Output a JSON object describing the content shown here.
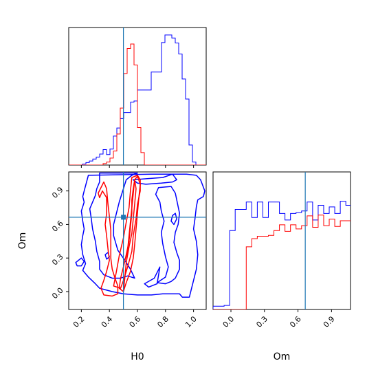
{
  "chart_data": {
    "type": "corner",
    "parameters": [
      "H0",
      "Om"
    ],
    "truths": {
      "H0": 0.5,
      "Om": 0.665
    },
    "colors": {
      "blue": "#0000ff",
      "red": "#ff0000",
      "truth": "#1f77b4"
    },
    "axes": {
      "H0": {
        "range": [
          0.11,
          1.09
        ],
        "ticks": [
          "0.2",
          "0.4",
          "0.6",
          "0.8",
          "1.0"
        ],
        "tick_values": [
          0.2,
          0.4,
          0.6,
          0.8,
          1.0
        ]
      },
      "Om": {
        "range": [
          -0.16,
          1.07
        ],
        "ticks": [
          "0.0",
          "0.3",
          "0.6",
          "0.9"
        ],
        "tick_values": [
          0.0,
          0.3,
          0.6,
          0.9
        ]
      }
    },
    "hist_H0": {
      "x_start": 0.11,
      "bin_width": 0.0245,
      "blue": [
        0,
        0,
        0,
        0,
        0.2,
        0.5,
        0.8,
        1.2,
        1.6,
        2.2,
        3.1,
        2.1,
        3.2,
        5.8,
        7.4,
        9.3,
        10.5,
        10.5,
        12.6,
        12.8,
        15.0,
        15.0,
        15.0,
        15.0,
        18.6,
        18.6,
        18.6,
        24.5,
        26.0,
        26.0,
        25.4,
        24.4,
        22.2,
        17.2,
        13.2,
        4.0,
        0.6,
        0,
        0,
        0
      ],
      "red": [
        0,
        0,
        0,
        0,
        0,
        0,
        0,
        0,
        0,
        0,
        0.3,
        0.6,
        1.4,
        2.8,
        6.2,
        11.4,
        18.3,
        23.3,
        24.2,
        20.0,
        7.5,
        2.5,
        0,
        0,
        0,
        0,
        0,
        0,
        0,
        0,
        0,
        0,
        0,
        0,
        0,
        0,
        0,
        0,
        0,
        0
      ]
    },
    "hist_Om": {
      "x_start": -0.16,
      "bin_width": 0.0495,
      "blue": [
        0.4,
        0.4,
        0.5,
        9.7,
        12.3,
        12.3,
        13.2,
        11.3,
        13.2,
        11.3,
        13.2,
        13.2,
        11.8,
        11.0,
        11.8,
        11.9,
        12.1,
        13.2,
        11.0,
        12.8,
        11.8,
        12.6,
        11.8,
        13.3,
        12.8,
        7.0,
        5.7,
        0.8,
        0.3
      ],
      "red": [
        0,
        0,
        0,
        0,
        0,
        0,
        7.7,
        8.7,
        9.0,
        9.0,
        9.1,
        9.7,
        10.4,
        9.6,
        10.4,
        9.9,
        10.3,
        11.5,
        10.1,
        11.6,
        10.3,
        11.1,
        10.2,
        10.9,
        10.9,
        9.9,
        10.2,
        0.1,
        0
      ]
    },
    "contours_blue": [
      [
        [
          0.25,
          1.04
        ],
        [
          0.235,
          0.97
        ],
        [
          0.22,
          0.9
        ],
        [
          0.21,
          0.85
        ],
        [
          0.22,
          0.8
        ],
        [
          0.2,
          0.72
        ],
        [
          0.21,
          0.63
        ],
        [
          0.22,
          0.56
        ],
        [
          0.21,
          0.5
        ],
        [
          0.2,
          0.42
        ],
        [
          0.21,
          0.33
        ],
        [
          0.23,
          0.25
        ],
        [
          0.21,
          0.19
        ],
        [
          0.25,
          0.13
        ],
        [
          0.3,
          0.07
        ],
        [
          0.33,
          0.03
        ],
        [
          0.42,
          0.0
        ],
        [
          0.5,
          -0.02
        ],
        [
          0.6,
          -0.03
        ],
        [
          0.7,
          -0.03
        ],
        [
          0.78,
          -0.02
        ],
        [
          0.83,
          -0.02
        ],
        [
          0.9,
          -0.02
        ],
        [
          0.92,
          -0.05
        ],
        [
          0.97,
          -0.05
        ],
        [
          0.98,
          0.0
        ],
        [
          1.0,
          0.1
        ],
        [
          1.02,
          0.2
        ],
        [
          1.03,
          0.33
        ],
        [
          1.02,
          0.45
        ],
        [
          1.0,
          0.56
        ],
        [
          1.01,
          0.65
        ],
        [
          1.02,
          0.76
        ],
        [
          1.03,
          0.82
        ],
        [
          1.07,
          0.85
        ],
        [
          1.08,
          0.9
        ],
        [
          1.05,
          1.0
        ],
        [
          1.02,
          1.04
        ],
        [
          0.95,
          1.05
        ],
        [
          0.7,
          1.05
        ]
      ],
      [
        [
          0.33,
          1.06
        ],
        [
          0.33,
          0.98
        ],
        [
          0.31,
          0.92
        ],
        [
          0.3,
          0.86
        ],
        [
          0.28,
          0.8
        ],
        [
          0.26,
          0.74
        ],
        [
          0.27,
          0.66
        ],
        [
          0.28,
          0.56
        ],
        [
          0.3,
          0.45
        ],
        [
          0.31,
          0.36
        ],
        [
          0.33,
          0.27
        ],
        [
          0.33,
          0.2
        ],
        [
          0.36,
          0.15
        ],
        [
          0.42,
          0.12
        ],
        [
          0.48,
          0.12
        ],
        [
          0.53,
          0.14
        ],
        [
          0.58,
          0.12
        ],
        [
          0.55,
          0.2
        ],
        [
          0.51,
          0.28
        ],
        [
          0.46,
          0.37
        ],
        [
          0.43,
          0.5
        ],
        [
          0.43,
          0.6
        ],
        [
          0.45,
          0.7
        ],
        [
          0.47,
          0.8
        ],
        [
          0.5,
          0.92
        ],
        [
          0.52,
          1.0
        ],
        [
          0.56,
          1.04
        ],
        [
          0.6,
          1.06
        ]
      ],
      [
        [
          0.16,
          0.26
        ],
        [
          0.2,
          0.3
        ],
        [
          0.22,
          0.27
        ],
        [
          0.2,
          0.23
        ],
        [
          0.17,
          0.23
        ]
      ],
      [
        [
          0.57,
          1.0
        ],
        [
          0.67,
          1.01
        ],
        [
          0.78,
          1.02
        ],
        [
          0.85,
          1.05
        ],
        [
          0.88,
          1.0
        ],
        [
          0.85,
          0.98
        ],
        [
          0.77,
          0.97
        ],
        [
          0.66,
          0.96
        ],
        [
          0.6,
          0.97
        ]
      ],
      [
        [
          0.74,
          0.08
        ],
        [
          0.8,
          0.13
        ],
        [
          0.82,
          0.22
        ],
        [
          0.8,
          0.31
        ],
        [
          0.78,
          0.43
        ],
        [
          0.77,
          0.53
        ],
        [
          0.79,
          0.63
        ],
        [
          0.77,
          0.72
        ],
        [
          0.76,
          0.8
        ],
        [
          0.73,
          0.87
        ],
        [
          0.75,
          0.93
        ],
        [
          0.84,
          0.94
        ],
        [
          0.87,
          0.88
        ],
        [
          0.88,
          0.82
        ],
        [
          0.9,
          0.7
        ],
        [
          0.89,
          0.6
        ],
        [
          0.87,
          0.53
        ],
        [
          0.86,
          0.44
        ],
        [
          0.88,
          0.35
        ],
        [
          0.9,
          0.28
        ],
        [
          0.9,
          0.2
        ],
        [
          0.87,
          0.12
        ],
        [
          0.84,
          0.09
        ],
        [
          0.8,
          0.07
        ]
      ],
      [
        [
          0.76,
          0.22
        ],
        [
          0.72,
          0.12
        ],
        [
          0.65,
          0.07
        ],
        [
          0.68,
          0.04
        ],
        [
          0.74,
          0.07
        ]
      ],
      [
        [
          0.86,
          0.6
        ],
        [
          0.88,
          0.65
        ],
        [
          0.87,
          0.7
        ],
        [
          0.85,
          0.68
        ],
        [
          0.84,
          0.63
        ]
      ],
      [
        [
          0.37,
          0.33
        ],
        [
          0.39,
          0.35
        ],
        [
          0.4,
          0.31
        ],
        [
          0.38,
          0.29
        ]
      ]
    ],
    "contours_red": [
      [
        [
          0.33,
          0.84
        ],
        [
          0.35,
          0.9
        ],
        [
          0.38,
          0.84
        ],
        [
          0.38,
          0.7
        ],
        [
          0.37,
          0.6
        ],
        [
          0.38,
          0.5
        ],
        [
          0.39,
          0.38
        ],
        [
          0.4,
          0.28
        ],
        [
          0.38,
          0.18
        ],
        [
          0.36,
          0.1
        ],
        [
          0.34,
          0.03
        ],
        [
          0.36,
          -0.03
        ],
        [
          0.42,
          -0.04
        ],
        [
          0.46,
          -0.02
        ],
        [
          0.46,
          0.05
        ],
        [
          0.44,
          0.12
        ],
        [
          0.42,
          0.2
        ],
        [
          0.41,
          0.3
        ],
        [
          0.41,
          0.43
        ],
        [
          0.41,
          0.55
        ],
        [
          0.4,
          0.67
        ],
        [
          0.39,
          0.78
        ],
        [
          0.38,
          0.92
        ],
        [
          0.36,
          0.98
        ],
        [
          0.34,
          0.93
        ],
        [
          0.32,
          0.88
        ]
      ],
      [
        [
          0.47,
          0.03
        ],
        [
          0.48,
          0.12
        ],
        [
          0.5,
          0.22
        ],
        [
          0.52,
          0.33
        ],
        [
          0.54,
          0.45
        ],
        [
          0.55,
          0.58
        ],
        [
          0.56,
          0.7
        ],
        [
          0.56,
          0.82
        ],
        [
          0.57,
          0.92
        ],
        [
          0.58,
          1.0
        ],
        [
          0.6,
          1.03
        ],
        [
          0.62,
          0.96
        ],
        [
          0.61,
          0.84
        ],
        [
          0.6,
          0.7
        ],
        [
          0.59,
          0.56
        ],
        [
          0.58,
          0.42
        ],
        [
          0.57,
          0.3
        ],
        [
          0.55,
          0.18
        ],
        [
          0.52,
          0.08
        ],
        [
          0.5,
          0.0
        ]
      ],
      [
        [
          0.5,
          0.0
        ],
        [
          0.51,
          0.12
        ],
        [
          0.52,
          0.26
        ],
        [
          0.54,
          0.4
        ],
        [
          0.56,
          0.52
        ],
        [
          0.57,
          0.65
        ],
        [
          0.58,
          0.78
        ],
        [
          0.59,
          0.92
        ],
        [
          0.58,
          1.0
        ]
      ],
      [
        [
          0.43,
          0.05
        ],
        [
          0.45,
          0.18
        ],
        [
          0.47,
          0.32
        ],
        [
          0.5,
          0.48
        ],
        [
          0.52,
          0.62
        ],
        [
          0.54,
          0.75
        ],
        [
          0.55,
          0.9
        ],
        [
          0.56,
          1.02
        ],
        [
          0.6,
          1.04
        ],
        [
          0.62,
          1.0
        ],
        [
          0.62,
          0.9
        ],
        [
          0.6,
          0.78
        ],
        [
          0.59,
          0.65
        ],
        [
          0.57,
          0.5
        ],
        [
          0.56,
          0.36
        ],
        [
          0.53,
          0.22
        ],
        [
          0.5,
          0.1
        ],
        [
          0.48,
          0.03
        ]
      ]
    ]
  },
  "axis_labels": {
    "x_left": "H0",
    "x_right": "Om",
    "y_left": "Om"
  }
}
